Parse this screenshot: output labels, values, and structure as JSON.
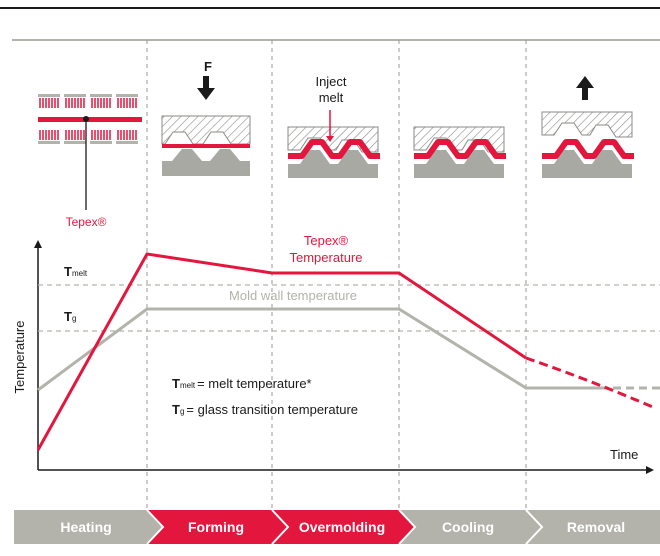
{
  "labels": {
    "force": "F",
    "inject_melt_line1": "Inject",
    "inject_melt_line2": "melt",
    "tepex": "Tepex®",
    "tepex_temp_line1": "Tepex®",
    "tepex_temp_line2": "Temperature",
    "mold_wall_temp": "Mold wall temperature",
    "y_axis": "Temperature",
    "x_axis": "Time",
    "t_melt_symbol": "T",
    "t_melt_sub": "melt",
    "t_g_symbol": "T",
    "t_g_sub": "g",
    "legend_melt": "= melt temperature*",
    "legend_glass": "= glass transition temperature"
  },
  "stages": [
    {
      "label": "Heating",
      "color": "#b3b3ab"
    },
    {
      "label": "Forming",
      "color": "#e3173e"
    },
    {
      "label": "Overmolding",
      "color": "#e3173e"
    },
    {
      "label": "Cooling",
      "color": "#b3b3ab"
    },
    {
      "label": "Removal",
      "color": "#b3b3ab"
    }
  ],
  "colors": {
    "red": "#e3173e",
    "gray": "#b3b3ab",
    "dark": "#1a1a1a",
    "mold": "#a9a9a4"
  }
}
